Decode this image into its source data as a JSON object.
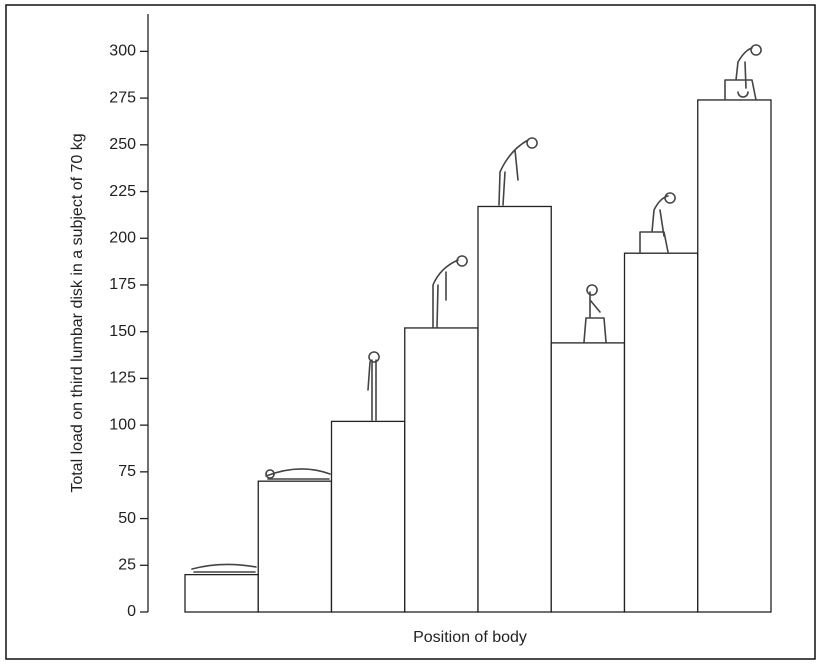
{
  "chart_data": {
    "type": "bar",
    "ylabel": "Total load on third lumbar disk in a subject of 70 kg",
    "xlabel": "Position of body",
    "categories": [
      null,
      null,
      null,
      null,
      null,
      null,
      null,
      null
    ],
    "values": [
      20,
      70,
      102,
      152,
      217,
      144,
      192,
      274
    ],
    "color": "#ffffff",
    "edgecolor": "#222222",
    "ylim": [
      0,
      320
    ],
    "yticks": [
      0,
      25,
      50,
      75,
      100,
      125,
      150,
      175,
      200,
      225,
      250,
      275,
      300
    ]
  }
}
